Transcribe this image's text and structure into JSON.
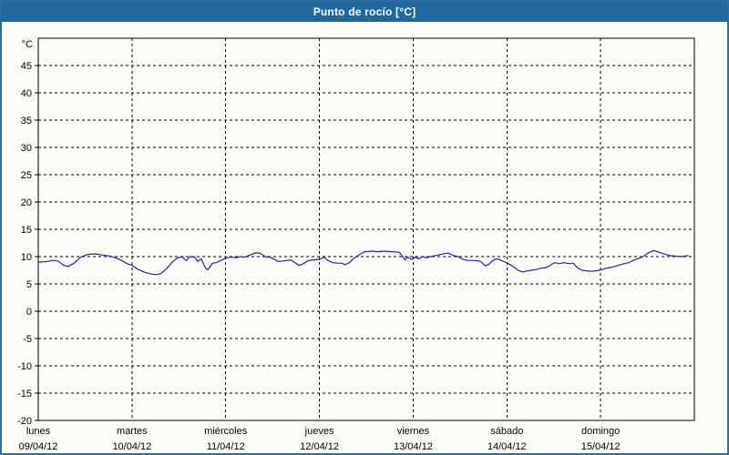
{
  "window": {
    "title": "Punto de rocío [°C]"
  },
  "colors": {
    "title_bar": "#2268a0",
    "title_text": "#ffffff",
    "window_border": "#2e6f9e",
    "chart_background": "#fcfcf8",
    "plot_frame": "#000000",
    "gridline": "#000000",
    "tick_label": "#000000",
    "series_line": "#2323ad"
  },
  "chart_data": {
    "type": "line",
    "title": "Punto de rocío [°C]",
    "y_unit_label": "°C",
    "ylabel": "",
    "xlabel": "",
    "grid": true,
    "legend": "none",
    "ylim": [
      -20,
      50
    ],
    "yticks": [
      45,
      40,
      35,
      30,
      25,
      20,
      15,
      10,
      5,
      0,
      -5,
      -10,
      -15,
      -20
    ],
    "x_axis": {
      "days": [
        {
          "name": "lunes",
          "date": "09/04/12"
        },
        {
          "name": "martes",
          "date": "10/04/12"
        },
        {
          "name": "miércoles",
          "date": "11/04/12"
        },
        {
          "name": "jueves",
          "date": "12/04/12"
        },
        {
          "name": "viernes",
          "date": "13/04/12"
        },
        {
          "name": "sábado",
          "date": "14/04/12"
        },
        {
          "name": "domingo",
          "date": "15/04/12"
        }
      ]
    },
    "series": [
      {
        "name": "Punto de rocío",
        "points": [
          [
            0.0,
            9.0
          ],
          [
            0.1,
            9.1
          ],
          [
            0.15,
            9.3
          ],
          [
            0.21,
            9.2
          ],
          [
            0.27,
            8.4
          ],
          [
            0.32,
            8.2
          ],
          [
            0.39,
            8.9
          ],
          [
            0.45,
            9.9
          ],
          [
            0.53,
            10.4
          ],
          [
            0.61,
            10.5
          ],
          [
            0.68,
            10.3
          ],
          [
            0.77,
            10.1
          ],
          [
            0.82,
            9.8
          ],
          [
            0.89,
            9.3
          ],
          [
            0.95,
            8.7
          ],
          [
            1.0,
            8.4
          ],
          [
            1.06,
            7.7
          ],
          [
            1.14,
            7.1
          ],
          [
            1.21,
            6.8
          ],
          [
            1.26,
            6.7
          ],
          [
            1.31,
            6.9
          ],
          [
            1.37,
            7.8
          ],
          [
            1.43,
            9.0
          ],
          [
            1.48,
            9.7
          ],
          [
            1.53,
            10.0
          ],
          [
            1.58,
            9.3
          ],
          [
            1.62,
            10.0
          ],
          [
            1.67,
            9.9
          ],
          [
            1.7,
            9.1
          ],
          [
            1.74,
            9.6
          ],
          [
            1.78,
            8.0
          ],
          [
            1.81,
            7.6
          ],
          [
            1.86,
            8.8
          ],
          [
            1.9,
            8.9
          ],
          [
            1.95,
            9.3
          ],
          [
            2.0,
            9.7
          ],
          [
            2.05,
            9.9
          ],
          [
            2.11,
            9.8
          ],
          [
            2.16,
            10.0
          ],
          [
            2.2,
            9.9
          ],
          [
            2.26,
            10.3
          ],
          [
            2.32,
            10.7
          ],
          [
            2.37,
            10.6
          ],
          [
            2.42,
            10.0
          ],
          [
            2.47,
            9.9
          ],
          [
            2.51,
            9.6
          ],
          [
            2.56,
            9.1
          ],
          [
            2.61,
            9.2
          ],
          [
            2.69,
            9.4
          ],
          [
            2.74,
            8.9
          ],
          [
            2.78,
            8.4
          ],
          [
            2.83,
            8.7
          ],
          [
            2.88,
            9.3
          ],
          [
            2.94,
            9.4
          ],
          [
            3.0,
            9.5
          ],
          [
            3.05,
            9.9
          ],
          [
            3.09,
            9.3
          ],
          [
            3.14,
            8.9
          ],
          [
            3.19,
            8.8
          ],
          [
            3.24,
            8.8
          ],
          [
            3.27,
            8.5
          ],
          [
            3.32,
            8.9
          ],
          [
            3.36,
            9.6
          ],
          [
            3.42,
            10.3
          ],
          [
            3.48,
            10.9
          ],
          [
            3.56,
            11.0
          ],
          [
            3.63,
            10.9
          ],
          [
            3.69,
            11.0
          ],
          [
            3.77,
            10.9
          ],
          [
            3.85,
            10.8
          ],
          [
            3.88,
            10.2
          ],
          [
            3.91,
            9.4
          ],
          [
            3.94,
            9.9
          ],
          [
            3.98,
            9.5
          ],
          [
            4.02,
            9.9
          ],
          [
            4.06,
            9.6
          ],
          [
            4.1,
            10.0
          ],
          [
            4.14,
            9.8
          ],
          [
            4.21,
            10.1
          ],
          [
            4.27,
            10.3
          ],
          [
            4.35,
            10.6
          ],
          [
            4.38,
            10.6
          ],
          [
            4.43,
            10.2
          ],
          [
            4.48,
            10.0
          ],
          [
            4.53,
            9.5
          ],
          [
            4.57,
            9.3
          ],
          [
            4.64,
            9.3
          ],
          [
            4.71,
            9.2
          ],
          [
            4.74,
            8.8
          ],
          [
            4.77,
            8.3
          ],
          [
            4.81,
            8.6
          ],
          [
            4.83,
            9.0
          ],
          [
            4.87,
            9.5
          ],
          [
            4.9,
            9.6
          ],
          [
            4.94,
            9.3
          ],
          [
            4.98,
            9.0
          ],
          [
            5.03,
            8.6
          ],
          [
            5.08,
            8.0
          ],
          [
            5.13,
            7.4
          ],
          [
            5.17,
            7.2
          ],
          [
            5.22,
            7.4
          ],
          [
            5.3,
            7.6
          ],
          [
            5.37,
            7.9
          ],
          [
            5.42,
            8.0
          ],
          [
            5.47,
            8.5
          ],
          [
            5.51,
            8.9
          ],
          [
            5.56,
            8.7
          ],
          [
            5.61,
            8.9
          ],
          [
            5.66,
            8.7
          ],
          [
            5.71,
            8.8
          ],
          [
            5.75,
            8.0
          ],
          [
            5.8,
            7.5
          ],
          [
            5.85,
            7.4
          ],
          [
            5.9,
            7.3
          ],
          [
            5.95,
            7.4
          ],
          [
            6.01,
            7.6
          ],
          [
            6.07,
            7.9
          ],
          [
            6.13,
            8.1
          ],
          [
            6.19,
            8.4
          ],
          [
            6.25,
            8.7
          ],
          [
            6.3,
            8.9
          ],
          [
            6.36,
            9.4
          ],
          [
            6.41,
            9.7
          ],
          [
            6.46,
            10.1
          ],
          [
            6.51,
            10.7
          ],
          [
            6.56,
            11.1
          ],
          [
            6.59,
            11.0
          ],
          [
            6.64,
            10.7
          ],
          [
            6.69,
            10.4
          ],
          [
            6.74,
            10.2
          ],
          [
            6.79,
            10.1
          ],
          [
            6.85,
            10.0
          ],
          [
            6.9,
            10.1
          ],
          [
            6.94,
            10.2
          ]
        ]
      }
    ]
  }
}
